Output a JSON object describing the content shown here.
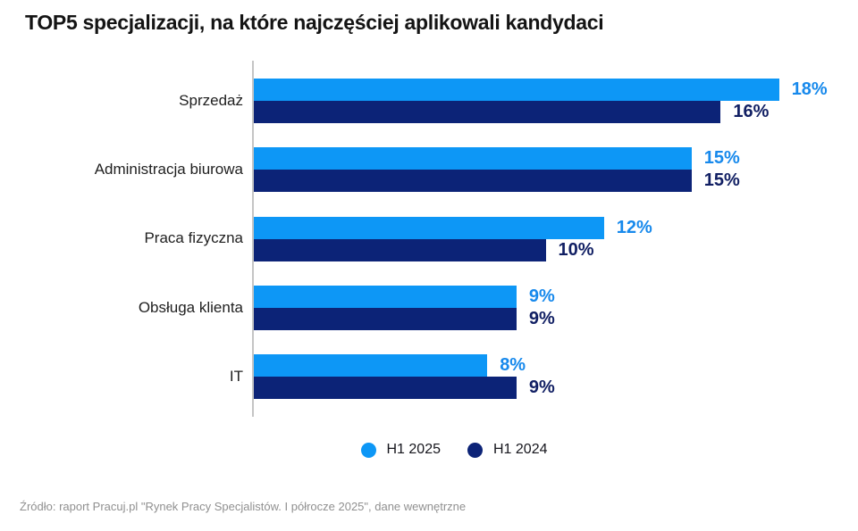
{
  "title": "TOP5 specjalizacji, na które najczęściej aplikowali kandydaci",
  "source": "Źródło: raport Pracuj.pl \"Rynek Pracy Specjalistów. I półrocze 2025\", dane wewnętrzne",
  "colors": {
    "h1_2025_bar": "#0d97f6",
    "h1_2024_bar": "#0c2377",
    "h1_2025_label": "#1789ec",
    "h1_2024_label": "#111f63",
    "axis": "#c5c5c5",
    "source_text": "#909090"
  },
  "chart_data": {
    "type": "bar",
    "orientation": "horizontal",
    "title": "TOP5 specjalizacji, na które najczęściej aplikowali kandydaci",
    "categories": [
      "Sprzedaż",
      "Administracja biurowa",
      "Praca fizyczna",
      "Obsługa klienta",
      "IT"
    ],
    "series": [
      {
        "name": "H1 2025",
        "color": "#0d97f6",
        "label_color": "#1789ec",
        "values": [
          18,
          15,
          12,
          9,
          8
        ],
        "labels": [
          "18%",
          "15%",
          "12%",
          "9%",
          "8%"
        ]
      },
      {
        "name": "H1 2024",
        "color": "#0c2377",
        "label_color": "#111f63",
        "values": [
          16,
          15,
          10,
          9,
          9
        ],
        "labels": [
          "16%",
          "15%",
          "10%",
          "9%",
          "9%"
        ]
      }
    ],
    "xlim": [
      0,
      18.3
    ],
    "value_suffix": "%",
    "grid": false,
    "legend_position": "bottom-center",
    "xlabel": "",
    "ylabel": ""
  }
}
